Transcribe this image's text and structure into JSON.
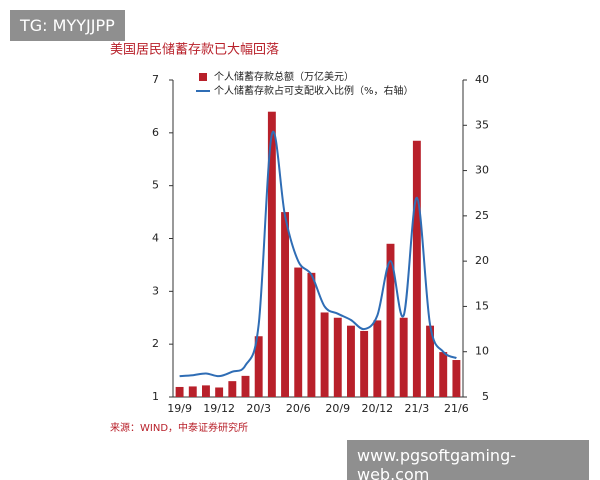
{
  "chart_data": {
    "type": "bar-line",
    "title": "美国居民储蓄存款已大幅回落",
    "source": "来源：WIND，中泰证券研究所",
    "categories": [
      "19/9",
      null,
      null,
      "19/12",
      null,
      null,
      "20/3",
      null,
      null,
      "20/6",
      null,
      null,
      "20/9",
      null,
      null,
      "20/12",
      null,
      null,
      "21/3",
      null,
      null,
      "21/6"
    ],
    "series": [
      {
        "name": "个人储蓄存款总额（万亿美元）",
        "type": "bar",
        "color": "#b8202a",
        "values": [
          1.19,
          1.2,
          1.22,
          1.18,
          1.3,
          1.4,
          2.15,
          6.4,
          4.5,
          3.45,
          3.35,
          2.6,
          2.5,
          2.35,
          2.25,
          2.45,
          3.9,
          2.5,
          5.85,
          2.35,
          1.85,
          1.7
        ]
      },
      {
        "name": "个人储蓄存款占可支配收入比例（%，右轴）",
        "type": "line",
        "axis": "y2",
        "color": "#2f6db5",
        "values": [
          7.3,
          7.4,
          7.6,
          7.3,
          7.8,
          8.5,
          13,
          34,
          25,
          20,
          18.5,
          15,
          14.2,
          13.5,
          12.5,
          14,
          20,
          14,
          27,
          13,
          10,
          9.3
        ]
      }
    ],
    "ylim": [
      1,
      7
    ],
    "yticks": [
      1,
      2,
      3,
      4,
      5,
      6,
      7
    ],
    "y2lim": [
      5,
      40
    ],
    "y2ticks": [
      5,
      10,
      15,
      20,
      25,
      30,
      35,
      40
    ],
    "legend": "top"
  },
  "watermarks": [
    "TG: MYYJJPP",
    "www.pgsoftgaming-web.com"
  ]
}
